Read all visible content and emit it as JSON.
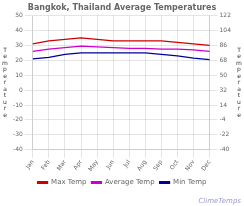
{
  "chart_data": {
    "type": "line",
    "title": "Bangkok, Thailand Average Temperatures",
    "categories": [
      "Jan",
      "Feb",
      "Mar",
      "Apr",
      "May",
      "Jun",
      "Jul",
      "Aug",
      "Sep",
      "Oct",
      "Nov",
      "Dec"
    ],
    "series": [
      {
        "name": "Max Temp",
        "color": "#cc0000",
        "values": [
          31,
          33,
          34,
          35,
          34,
          33,
          33,
          33,
          33,
          32,
          31,
          30
        ]
      },
      {
        "name": "Average Temp",
        "color": "#cc00cc",
        "values": [
          26,
          27.5,
          28.5,
          29.5,
          29,
          28.5,
          28,
          28,
          27.5,
          27.5,
          27,
          26
        ]
      },
      {
        "name": "Min Temp",
        "color": "#000099",
        "values": [
          21,
          22,
          24,
          25,
          25,
          25,
          25,
          25,
          24,
          23,
          21.5,
          20.5
        ]
      }
    ],
    "ylim": [
      -40,
      50
    ],
    "yticks": [
      -40,
      -30,
      -20,
      -10,
      0,
      10,
      20,
      30,
      40,
      50
    ],
    "y2lim": [
      -40,
      122
    ],
    "y2ticks": [
      -40,
      -22,
      -4,
      14,
      32,
      50,
      68,
      86,
      104,
      122
    ],
    "ylabel": "T\ne\nm\np\ne\nr\na\nt\nu\nr\ne",
    "y2label": "T\ne\nm\np\ne\nr\na\nt\nu\nr\ne",
    "annotations": [
      {
        "text": "ClimeTemps",
        "color": "#9999cc"
      }
    ],
    "grid": true,
    "legend": "bottom"
  }
}
